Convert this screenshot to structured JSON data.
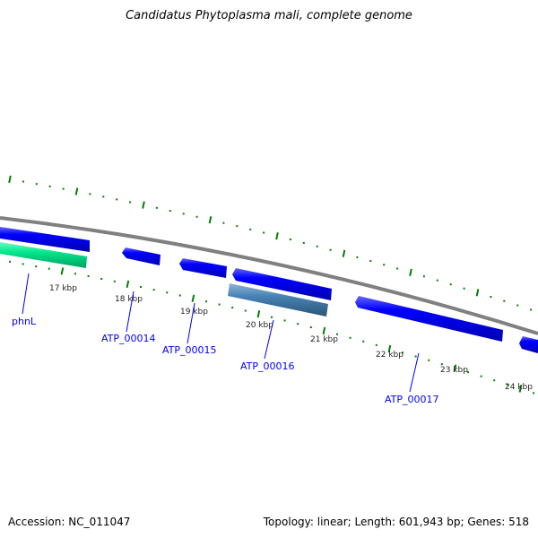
{
  "title": "Candidatus Phytoplasma mali, complete genome",
  "footer": {
    "accession": "Accession: NC_011047",
    "summary": "Topology: linear; Length: 601,943 bp; Genes: 518"
  },
  "scale_labels": [
    "17 kbp",
    "18 kbp",
    "19 kbp",
    "20 kbp",
    "21 kbp",
    "22 kbp",
    "23 kbp",
    "24 kbp"
  ],
  "gene_labels": {
    "phnL": "phnL",
    "atp14": "ATP_00014",
    "atp15": "ATP_00015",
    "atp16": "ATP_00016",
    "atp17": "ATP_00017"
  },
  "colors": {
    "gene": "#0000ff",
    "rna": "#00e58c",
    "other": "#4682b4",
    "backbone": "#808080",
    "tick": "#008000",
    "label": "#0000ff"
  }
}
